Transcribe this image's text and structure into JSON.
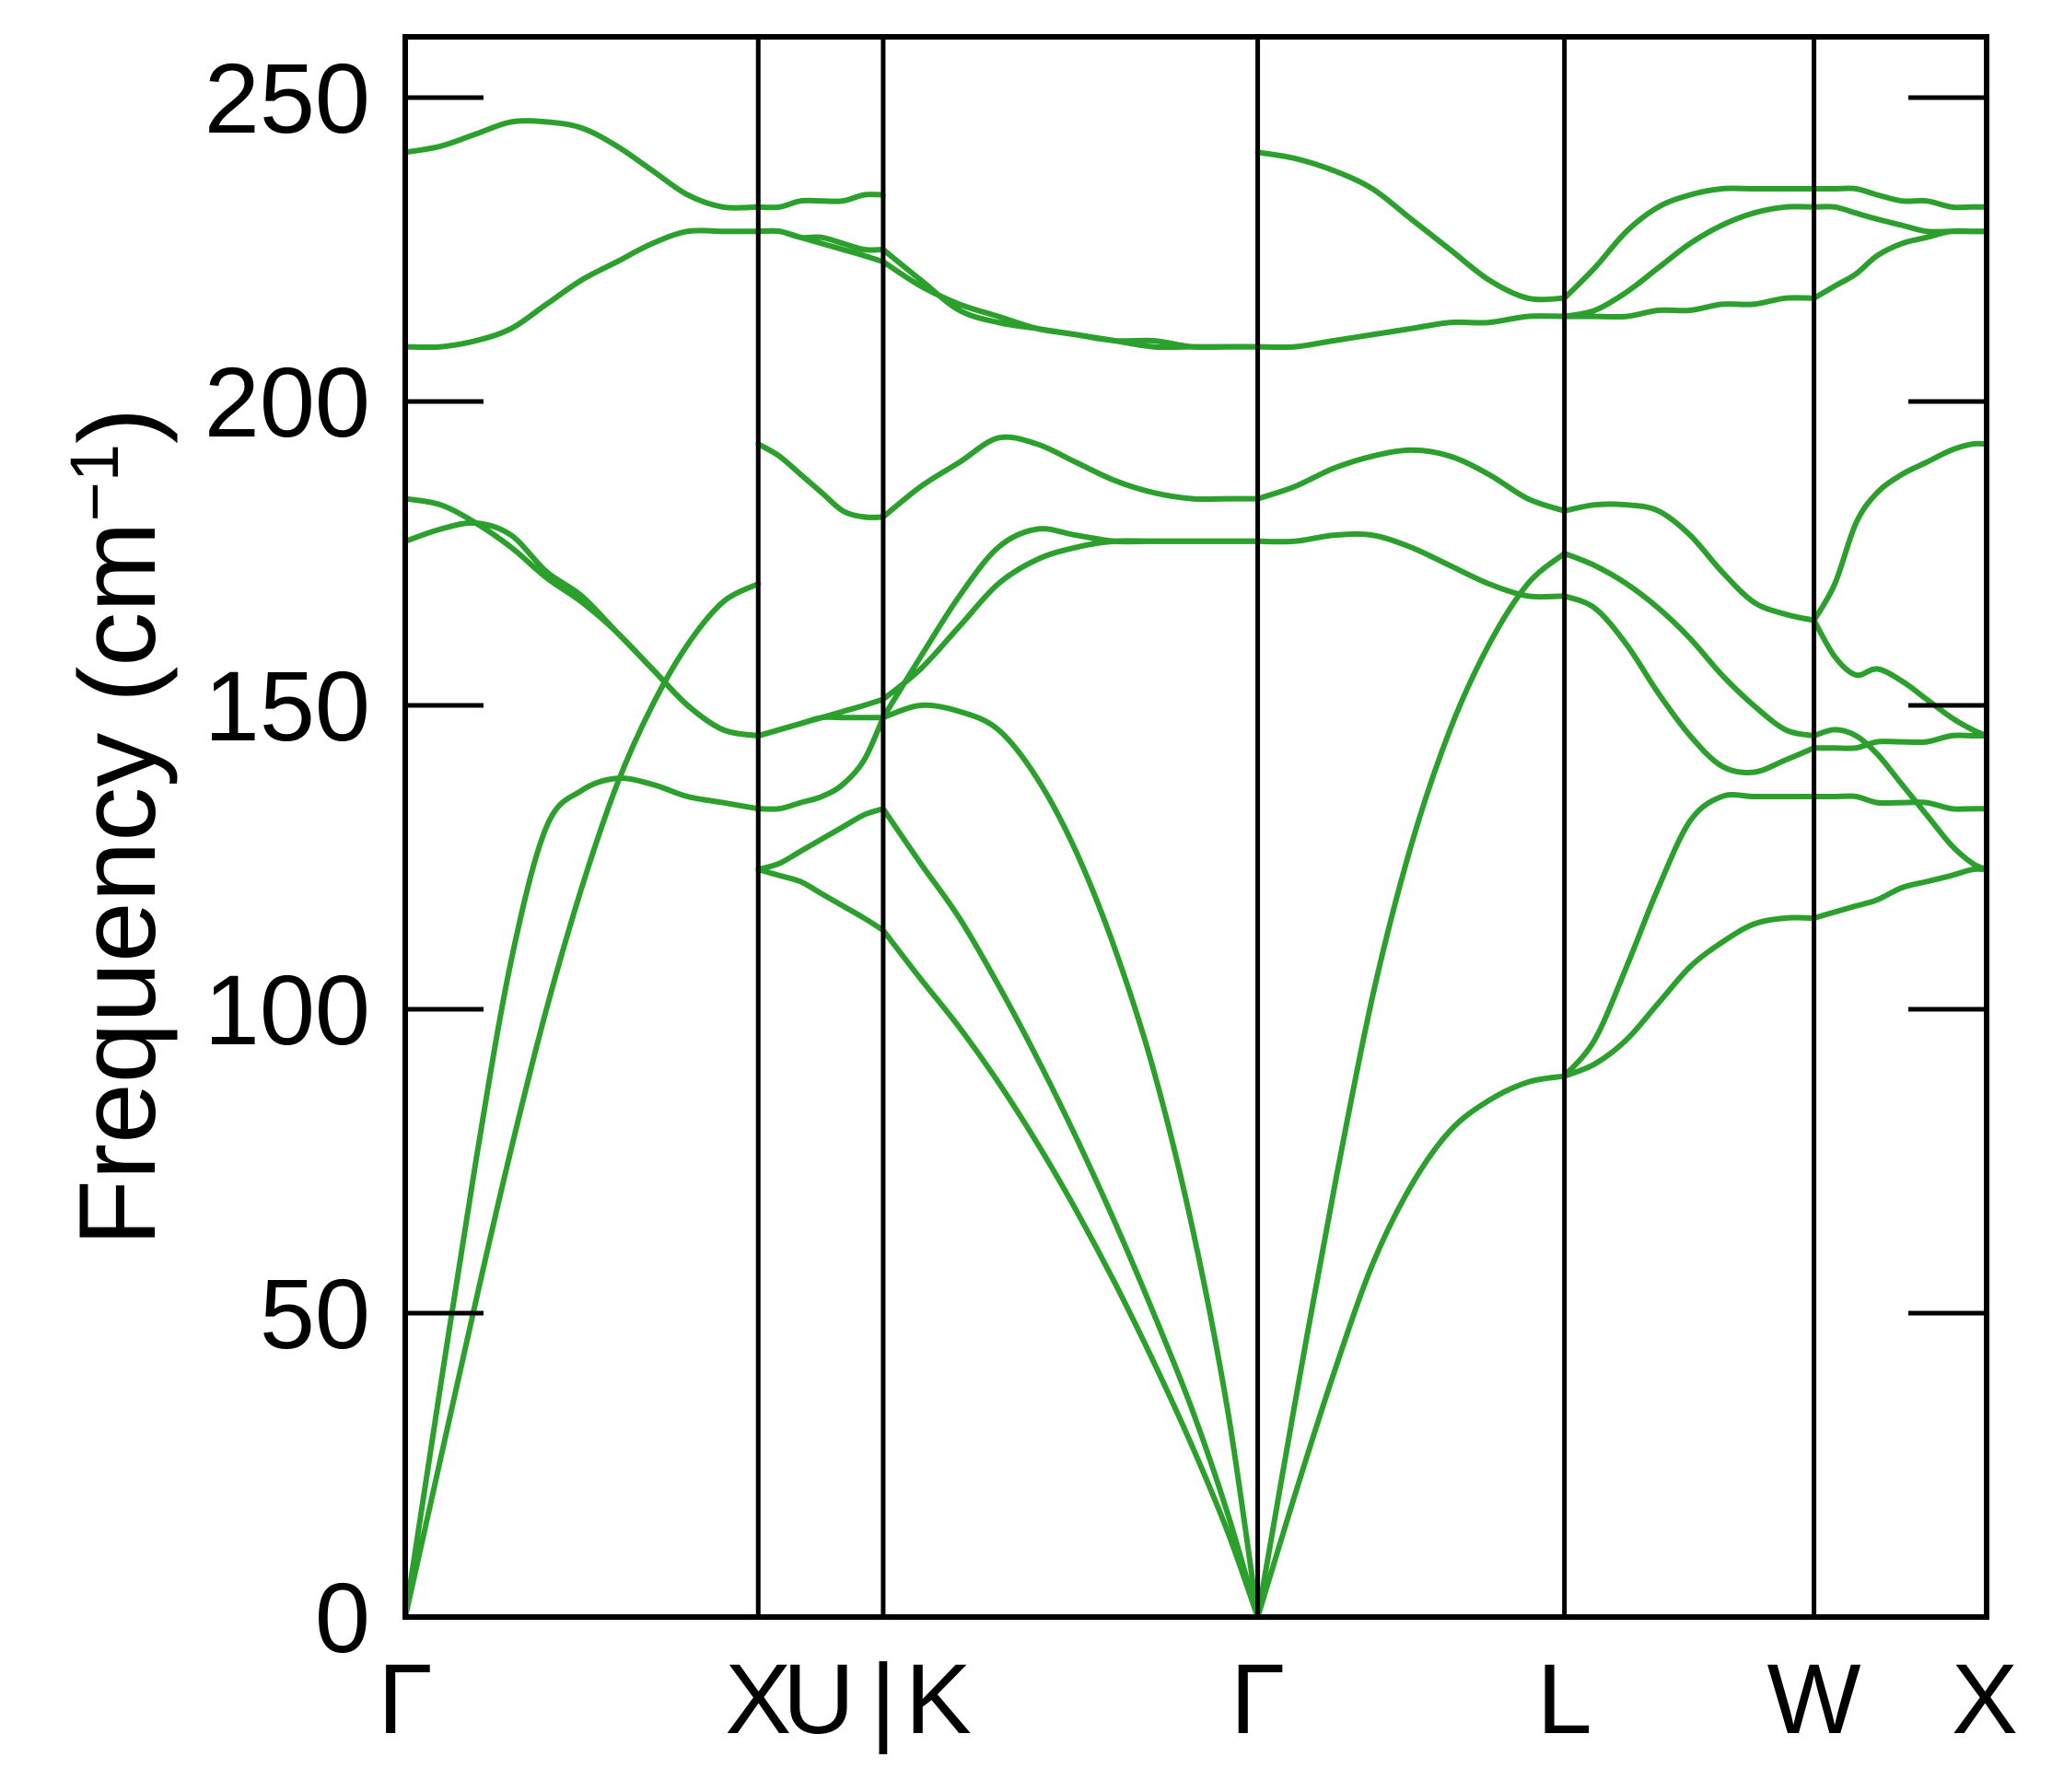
{
  "chart_data": {
    "type": "line",
    "title": "",
    "xlabel": "",
    "ylabel": "Frequency (cm",
    "ylabel_superscript": "−1",
    "ylabel_suffix": ")",
    "ylim": [
      0,
      260
    ],
    "yticks": [
      0,
      50,
      100,
      150,
      200,
      250
    ],
    "ytick_labels": [
      "0",
      "50",
      "100",
      "150",
      "200",
      "250"
    ],
    "grid": false,
    "legend": "none",
    "line_color": "#2ca02c",
    "axis_color": "#000000",
    "k_points": [
      {
        "label": "Γ",
        "x": 0
      },
      {
        "label": "X",
        "x": 1
      },
      {
        "label": "U",
        "x": 1.354
      },
      {
        "label": "|",
        "x": 1.354
      },
      {
        "label": "K",
        "x": 1.354
      },
      {
        "label": "Γ",
        "x": 2.415
      },
      {
        "label": "L",
        "x": 3.284
      },
      {
        "label": "W",
        "x": 3.991
      },
      {
        "label": "X",
        "x": 4.48
      }
    ],
    "segments": [
      {
        "from": "Γ",
        "to": "X",
        "x": [
          0,
          0.1,
          0.2,
          0.3,
          0.4,
          0.5,
          0.6,
          0.7,
          0.8,
          0.9,
          1.0
        ],
        "bands": [
          [
            0,
            26,
            52,
            77,
            100,
            120,
            137,
            150,
            160,
            167,
            170
          ],
          [
            0,
            38,
            75,
            108,
            130,
            136,
            138,
            137,
            135,
            134,
            133
          ],
          [
            177,
            179,
            180,
            178,
            172,
            168,
            162,
            156,
            150,
            146,
            145
          ],
          [
            184,
            183,
            180,
            176,
            171,
            167,
            162,
            156,
            150,
            146,
            145
          ],
          [
            209,
            209,
            210,
            212,
            216,
            220,
            223,
            226,
            228,
            228,
            228
          ],
          [
            241,
            242,
            244,
            246,
            246,
            245,
            242,
            238,
            234,
            232,
            232
          ]
        ]
      },
      {
        "from": "U",
        "to": "Γ",
        "x": [
          1.354,
          1.46,
          1.57,
          1.68,
          1.79,
          1.9,
          2.01,
          2.12,
          2.23,
          2.33,
          2.415
        ],
        "bands": [
          [
            133,
            124,
            115,
            104,
            92,
            79,
            65,
            50,
            34,
            17,
            0
          ],
          [
            113,
            105,
            97,
            88,
            78,
            67,
            55,
            42,
            28,
            14,
            0
          ],
          [
            148,
            150,
            149,
            146,
            138,
            126,
            110,
            90,
            64,
            34,
            0
          ],
          [
            151,
            156,
            163,
            170,
            174,
            176,
            177,
            177,
            177,
            177,
            177
          ],
          [
            148,
            158,
            168,
            176,
            179,
            178,
            177,
            177,
            177,
            177,
            177
          ],
          [
            181,
            186,
            190,
            194,
            193,
            190,
            187,
            185,
            184,
            184,
            184
          ],
          [
            225,
            220,
            215,
            213,
            212,
            211,
            210,
            209,
            209,
            209,
            209
          ],
          [
            223,
            219,
            216,
            214,
            212,
            211,
            210,
            210,
            209,
            209,
            209
          ]
        ]
      },
      {
        "from": "X",
        "to": "U",
        "x": [
          1.0,
          1.06,
          1.12,
          1.18,
          1.24,
          1.3,
          1.354
        ],
        "bands": [
          [
            123,
            124,
            126,
            128,
            130,
            132,
            133
          ],
          [
            123,
            122,
            121,
            119,
            117,
            115,
            113
          ],
          [
            133,
            133,
            134,
            135,
            137,
            141,
            148
          ],
          [
            145,
            146,
            147,
            148,
            149,
            150,
            151
          ],
          [
            145,
            146,
            147,
            148,
            148,
            148,
            148
          ],
          [
            193,
            191,
            188,
            185,
            182,
            181,
            181
          ],
          [
            228,
            228,
            227,
            227,
            226,
            225,
            225
          ],
          [
            228,
            228,
            227,
            226,
            225,
            224,
            223
          ],
          [
            232,
            232,
            233,
            233,
            233,
            234,
            234
          ]
        ]
      },
      {
        "from": "Γ",
        "to": "L",
        "x": [
          2.415,
          2.52,
          2.63,
          2.74,
          2.85,
          2.96,
          3.07,
          3.18,
          3.284
        ],
        "bands": [
          [
            0,
            20,
            40,
            58,
            71,
            80,
            85,
            88,
            89
          ],
          [
            0,
            35,
            70,
            102,
            127,
            146,
            160,
            170,
            175
          ],
          [
            177,
            177,
            178,
            178,
            176,
            173,
            170,
            168,
            168
          ],
          [
            184,
            186,
            189,
            191,
            192,
            191,
            188,
            184,
            182
          ],
          [
            209,
            209,
            210,
            211,
            212,
            213,
            213,
            214,
            214
          ],
          [
            241,
            240,
            238,
            235,
            230,
            225,
            220,
            217,
            217
          ]
        ]
      },
      {
        "from": "L",
        "to": "W",
        "x": [
          3.284,
          3.37,
          3.46,
          3.55,
          3.64,
          3.73,
          3.82,
          3.91,
          3.991
        ],
        "bands": [
          [
            89,
            91,
            95,
            101,
            107,
            111,
            114,
            115,
            115
          ],
          [
            89,
            95,
            107,
            120,
            131,
            135,
            135,
            135,
            135
          ],
          [
            175,
            173,
            170,
            166,
            161,
            155,
            150,
            146,
            145
          ],
          [
            168,
            166,
            160,
            152,
            145,
            140,
            139,
            141,
            143
          ],
          [
            182,
            183,
            183,
            182,
            178,
            172,
            167,
            165,
            164
          ],
          [
            214,
            214,
            214,
            215,
            215,
            216,
            216,
            217,
            217
          ],
          [
            214,
            215,
            218,
            222,
            226,
            229,
            231,
            232,
            232
          ],
          [
            217,
            222,
            228,
            232,
            234,
            235,
            235,
            235,
            235
          ]
        ]
      },
      {
        "from": "W",
        "to": "X",
        "x": [
          3.991,
          4.05,
          4.11,
          4.17,
          4.24,
          4.31,
          4.38,
          4.44,
          4.48
        ],
        "bands": [
          [
            115,
            116,
            117,
            118,
            120,
            121,
            122,
            123,
            123
          ],
          [
            135,
            135,
            135,
            134,
            134,
            134,
            133,
            133,
            133
          ],
          [
            145,
            146,
            145,
            142,
            137,
            132,
            127,
            124,
            123
          ],
          [
            143,
            143,
            143,
            144,
            144,
            144,
            145,
            145,
            145
          ],
          [
            164,
            170,
            180,
            185,
            188,
            190,
            192,
            193,
            193
          ],
          [
            164,
            158,
            155,
            156,
            154,
            151,
            148,
            146,
            145
          ],
          [
            217,
            219,
            221,
            224,
            226,
            227,
            228,
            228,
            228
          ],
          [
            232,
            232,
            231,
            230,
            229,
            228,
            228,
            228,
            228
          ],
          [
            235,
            235,
            235,
            234,
            233,
            233,
            232,
            232,
            232
          ]
        ]
      }
    ]
  }
}
